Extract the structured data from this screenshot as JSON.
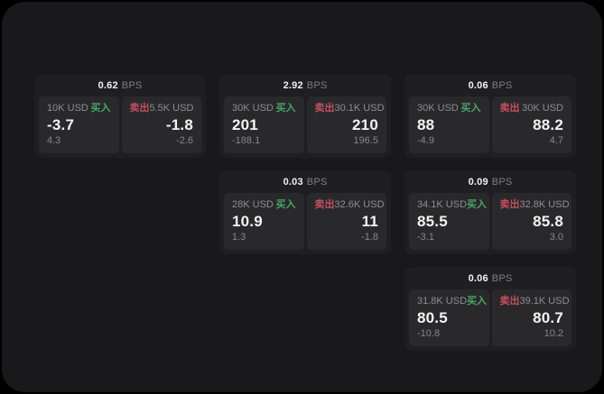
{
  "labels": {
    "buy": "买入",
    "sell": "卖出",
    "bps_unit": "BPS"
  },
  "colors": {
    "buy": "#4aa469",
    "sell": "#c4505f",
    "panel_bg": "#19191b",
    "card_bg": "#1f1f21",
    "pane_bg": "#29292b"
  },
  "cards": [
    {
      "bps": "0.62",
      "buy": {
        "amount": "10K USD",
        "value": "-3.7",
        "sub": "4.3"
      },
      "sell": {
        "amount": "5.5K USD",
        "value": "-1.8",
        "sub": "-2.6"
      }
    },
    {
      "bps": "2.92",
      "buy": {
        "amount": "30K USD",
        "value": "201",
        "sub": "-188.1"
      },
      "sell": {
        "amount": "30.1K USD",
        "value": "210",
        "sub": "196.5"
      }
    },
    {
      "bps": "0.06",
      "buy": {
        "amount": "30K USD",
        "value": "88",
        "sub": "-4.9"
      },
      "sell": {
        "amount": "30K USD",
        "value": "88.2",
        "sub": "4.7"
      }
    },
    {
      "bps": "0.03",
      "buy": {
        "amount": "28K USD",
        "value": "10.9",
        "sub": "1.3"
      },
      "sell": {
        "amount": "32.6K USD",
        "value": "11",
        "sub": "-1.8"
      }
    },
    {
      "bps": "0.09",
      "buy": {
        "amount": "34.1K USD",
        "value": "85.5",
        "sub": "-3.1"
      },
      "sell": {
        "amount": "32.8K USD",
        "value": "85.8",
        "sub": "3.0"
      }
    },
    {
      "bps": "0.06",
      "buy": {
        "amount": "31.8K USD",
        "value": "80.5",
        "sub": "-10.8"
      },
      "sell": {
        "amount": "39.1K USD",
        "value": "80.7",
        "sub": "10.2"
      }
    }
  ]
}
